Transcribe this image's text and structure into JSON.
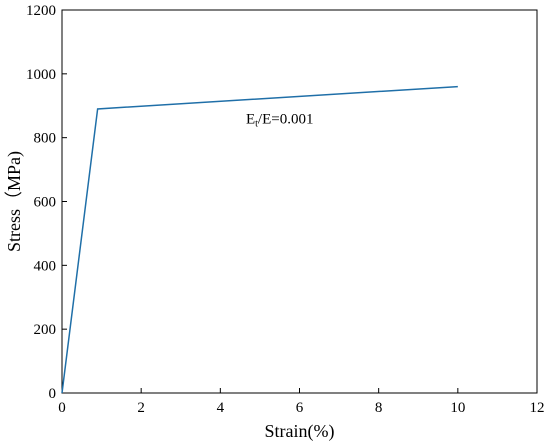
{
  "chart_data": {
    "type": "line",
    "xlabel": "Strain(%)",
    "ylabel": "Stress（MPa)",
    "xlim": [
      0,
      12
    ],
    "ylim": [
      0,
      1200
    ],
    "xticks": [
      0,
      2,
      4,
      6,
      8,
      10,
      12
    ],
    "yticks": [
      0,
      200,
      400,
      600,
      800,
      1000,
      1200
    ],
    "grid": false,
    "legend": "none",
    "series": [
      {
        "color": "#1f6fa8",
        "x": [
          0,
          0.9,
          10
        ],
        "y": [
          0,
          890,
          960
        ]
      }
    ],
    "annotations": [
      {
        "main": "E",
        "sub": "t",
        "rest": "/E=0.001",
        "x": 5.5,
        "y": 845
      }
    ]
  }
}
